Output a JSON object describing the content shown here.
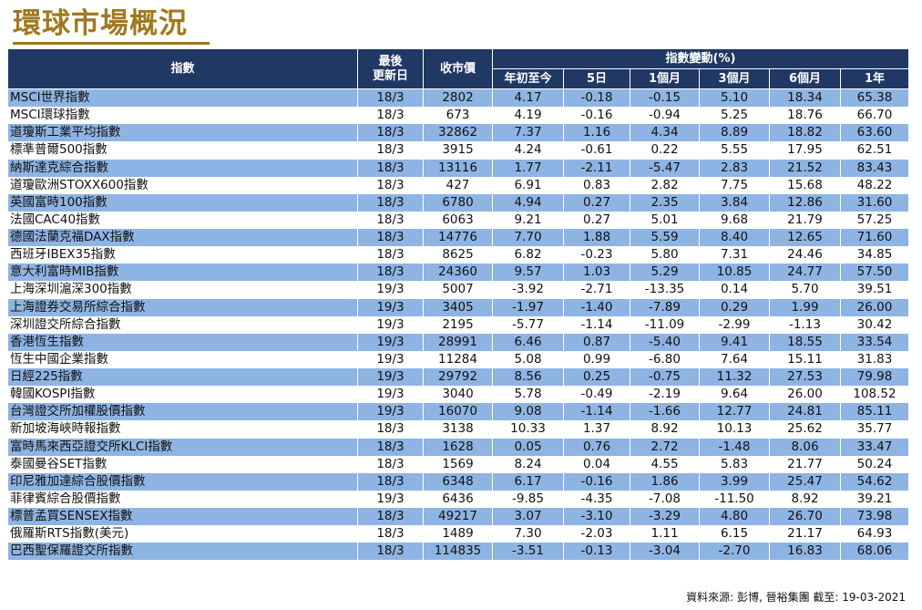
{
  "title": "環球市場概況",
  "headers": {
    "index": "指數",
    "last_update_line1": "最後",
    "last_update_line2": "更新日",
    "close": "收市價",
    "change_group": "指數變動(%)",
    "periods": [
      "年初至今",
      "5日",
      "1個月",
      "3個月",
      "6個月",
      "1年"
    ]
  },
  "rows": [
    [
      "MSCI世界指數",
      "18/3",
      "2802",
      "4.17",
      "-0.18",
      "-0.15",
      "5.10",
      "18.34",
      "65.38"
    ],
    [
      "MSCI環球指數",
      "18/3",
      "673",
      "4.19",
      "-0.16",
      "-0.94",
      "5.25",
      "18.76",
      "66.70"
    ],
    [
      "道瓊斯工業平均指數",
      "18/3",
      "32862",
      "7.37",
      "1.16",
      "4.34",
      "8.89",
      "18.82",
      "63.60"
    ],
    [
      "標準普爾500指數",
      "18/3",
      "3915",
      "4.24",
      "-0.61",
      "0.22",
      "5.55",
      "17.95",
      "62.51"
    ],
    [
      "納斯達克綜合指數",
      "18/3",
      "13116",
      "1.77",
      "-2.11",
      "-5.47",
      "2.83",
      "21.52",
      "83.43"
    ],
    [
      "道瓊歐洲STOXX600指數",
      "18/3",
      "427",
      "6.91",
      "0.83",
      "2.82",
      "7.75",
      "15.68",
      "48.22"
    ],
    [
      "英國富時100指數",
      "18/3",
      "6780",
      "4.94",
      "0.27",
      "2.35",
      "3.84",
      "12.86",
      "31.60"
    ],
    [
      "法國CAC40指數",
      "18/3",
      "6063",
      "9.21",
      "0.27",
      "5.01",
      "9.68",
      "21.79",
      "57.25"
    ],
    [
      "德國法蘭克福DAX指數",
      "18/3",
      "14776",
      "7.70",
      "1.88",
      "5.59",
      "8.40",
      "12.65",
      "71.60"
    ],
    [
      "西班牙IBEX35指數",
      "18/3",
      "8625",
      "6.82",
      "-0.23",
      "5.80",
      "7.31",
      "24.46",
      "34.85"
    ],
    [
      "意大利富時MIB指數",
      "18/3",
      "24360",
      "9.57",
      "1.03",
      "5.29",
      "10.85",
      "24.77",
      "57.50"
    ],
    [
      "上海深圳滬深300指數",
      "19/3",
      "5007",
      "-3.92",
      "-2.71",
      "-13.35",
      "0.14",
      "5.70",
      "39.51"
    ],
    [
      "上海證券交易所綜合指數",
      "19/3",
      "3405",
      "-1.97",
      "-1.40",
      "-7.89",
      "0.29",
      "1.99",
      "26.00"
    ],
    [
      "深圳證交所綜合指數",
      "19/3",
      "2195",
      "-5.77",
      "-1.14",
      "-11.09",
      "-2.99",
      "-1.13",
      "30.42"
    ],
    [
      "香港恆生指數",
      "19/3",
      "28991",
      "6.46",
      "0.87",
      "-5.40",
      "9.41",
      "18.55",
      "33.54"
    ],
    [
      "恆生中國企業指數",
      "19/3",
      "11284",
      "5.08",
      "0.99",
      "-6.80",
      "7.64",
      "15.11",
      "31.83"
    ],
    [
      "日經225指數",
      "19/3",
      "29792",
      "8.56",
      "0.25",
      "-0.75",
      "11.32",
      "27.53",
      "79.98"
    ],
    [
      "韓國KOSPI指數",
      "19/3",
      "3040",
      "5.78",
      "-0.49",
      "-2.19",
      "9.64",
      "26.00",
      "108.52"
    ],
    [
      "台灣證交所加權股價指數",
      "19/3",
      "16070",
      "9.08",
      "-1.14",
      "-1.66",
      "12.77",
      "24.81",
      "85.11"
    ],
    [
      "新加坡海峽時報指數",
      "18/3",
      "3138",
      "10.33",
      "1.37",
      "8.92",
      "10.13",
      "25.62",
      "35.77"
    ],
    [
      "富時馬來西亞證交所KLCI指數",
      "18/3",
      "1628",
      "0.05",
      "0.76",
      "2.72",
      "-1.48",
      "8.06",
      "33.47"
    ],
    [
      "泰國曼谷SET指數",
      "18/3",
      "1569",
      "8.24",
      "0.04",
      "4.55",
      "5.83",
      "21.77",
      "50.24"
    ],
    [
      "印尼雅加達綜合股價指數",
      "18/3",
      "6348",
      "6.17",
      "-0.16",
      "1.86",
      "3.99",
      "25.47",
      "54.62"
    ],
    [
      "菲律賓綜合股價指數",
      "19/3",
      "6436",
      "-9.85",
      "-4.35",
      "-7.08",
      "-11.50",
      "8.92",
      "39.21"
    ],
    [
      "標普孟買SENSEX指數",
      "18/3",
      "49217",
      "3.07",
      "-3.10",
      "-3.29",
      "4.80",
      "26.70",
      "73.98"
    ],
    [
      "俄羅斯RTS指數(美元)",
      "18/3",
      "1489",
      "7.30",
      "-2.03",
      "1.11",
      "6.15",
      "21.17",
      "64.93"
    ],
    [
      "巴西聖保羅證交所指數",
      "18/3",
      "114835",
      "-3.51",
      "-0.13",
      "-3.04",
      "-2.70",
      "16.83",
      "68.06"
    ]
  ],
  "source": "資料來源: 彭博, 晉裕集團 截至: 19-03-2021",
  "colors": {
    "header_bg": "#1f3864",
    "row_band": "#8eb4e3",
    "title": "#a07820"
  }
}
